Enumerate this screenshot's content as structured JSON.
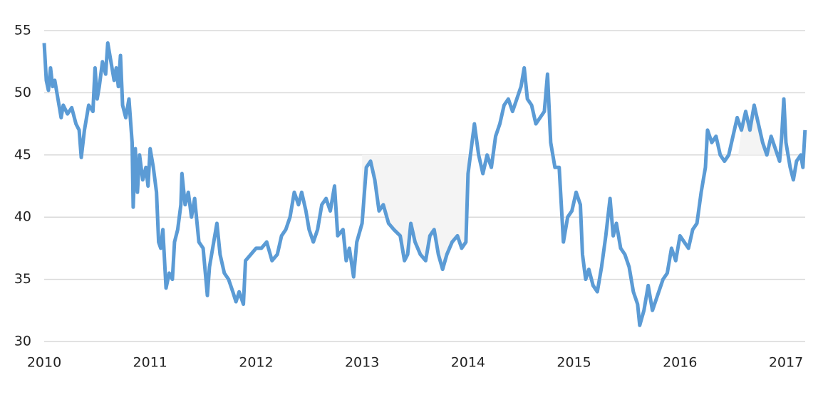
{
  "chart_data": {
    "type": "line",
    "x": [
      2010.0,
      2010.02,
      2010.04,
      2010.06,
      2010.08,
      2010.1,
      2010.13,
      2010.16,
      2010.18,
      2010.22,
      2010.26,
      2010.3,
      2010.33,
      2010.35,
      2010.38,
      2010.42,
      2010.46,
      2010.48,
      2010.5,
      2010.52,
      2010.55,
      2010.58,
      2010.6,
      2010.63,
      2010.66,
      2010.68,
      2010.7,
      2010.72,
      2010.74,
      2010.77,
      2010.8,
      2010.83,
      2010.84,
      2010.86,
      2010.88,
      2010.9,
      2010.93,
      2010.96,
      2010.98,
      2011.0,
      2011.03,
      2011.06,
      2011.08,
      2011.1,
      2011.12,
      2011.15,
      2011.18,
      2011.21,
      2011.23,
      2011.26,
      2011.29,
      2011.3,
      2011.33,
      2011.36,
      2011.39,
      2011.42,
      2011.46,
      2011.5,
      2011.54,
      2011.56,
      2011.6,
      2011.63,
      2011.66,
      2011.7,
      2011.74,
      2011.78,
      2011.81,
      2011.84,
      2011.88,
      2011.9,
      2011.95,
      2012.0,
      2012.05,
      2012.1,
      2012.15,
      2012.2,
      2012.24,
      2012.28,
      2012.32,
      2012.36,
      2012.4,
      2012.43,
      2012.47,
      2012.5,
      2012.54,
      2012.58,
      2012.62,
      2012.66,
      2012.7,
      2012.74,
      2012.77,
      2012.82,
      2012.85,
      2012.88,
      2012.92,
      2012.95,
      2013.0,
      2013.04,
      2013.08,
      2013.12,
      2013.16,
      2013.2,
      2013.25,
      2013.3,
      2013.36,
      2013.4,
      2013.43,
      2013.46,
      2013.5,
      2013.55,
      2013.6,
      2013.64,
      2013.68,
      2013.72,
      2013.76,
      2013.8,
      2013.85,
      2013.9,
      2013.94,
      2013.98,
      2014.0,
      2014.03,
      2014.06,
      2014.1,
      2014.14,
      2014.18,
      2014.22,
      2014.26,
      2014.3,
      2014.34,
      2014.38,
      2014.42,
      2014.46,
      2014.5,
      2014.53,
      2014.56,
      2014.6,
      2014.64,
      2014.68,
      2014.72,
      2014.75,
      2014.78,
      2014.82,
      2014.86,
      2014.9,
      2014.94,
      2014.98,
      2015.02,
      2015.06,
      2015.08,
      2015.11,
      2015.14,
      2015.18,
      2015.22,
      2015.26,
      2015.3,
      2015.34,
      2015.37,
      2015.4,
      2015.44,
      2015.48,
      2015.52,
      2015.56,
      2015.6,
      2015.62,
      2015.66,
      2015.7,
      2015.74,
      2015.8,
      2015.84,
      2015.88,
      2015.92,
      2015.96,
      2016.0,
      2016.04,
      2016.08,
      2016.12,
      2016.16,
      2016.2,
      2016.24,
      2016.26,
      2016.3,
      2016.34,
      2016.38,
      2016.42,
      2016.46,
      2016.5,
      2016.54,
      2016.58,
      2016.62,
      2016.66,
      2016.7,
      2016.74,
      2016.78,
      2016.82,
      2016.86,
      2016.9,
      2016.94,
      2016.96,
      2016.98,
      2017.0,
      2017.04,
      2017.07,
      2017.1,
      2017.14,
      2017.16,
      2017.18
    ],
    "values": [
      54.0,
      51,
      50.2,
      52,
      50.5,
      51,
      49.5,
      48,
      49,
      48.3,
      48.8,
      47.5,
      47,
      44.8,
      47,
      49,
      48.5,
      52,
      49.5,
      50.5,
      52.5,
      51.5,
      54,
      52.5,
      51,
      52,
      50.5,
      53,
      49,
      48,
      49.5,
      46,
      40.8,
      45.5,
      42,
      45,
      43,
      44,
      42.5,
      45.5,
      44,
      42,
      38,
      37.5,
      39,
      34.3,
      35.5,
      35,
      38,
      39,
      41,
      43.5,
      41,
      42,
      40,
      41.5,
      38,
      37.5,
      33.7,
      36,
      38,
      39.5,
      37,
      35.5,
      35,
      34,
      33.2,
      34,
      33,
      36.5,
      37,
      37.5,
      37.5,
      38,
      36.5,
      37,
      38.5,
      39,
      40,
      42,
      41,
      42,
      40.5,
      39,
      38,
      39,
      41,
      41.5,
      40.5,
      42.5,
      38.5,
      39,
      36.5,
      37.5,
      35.2,
      38,
      39.5,
      44,
      44.5,
      43,
      40.5,
      41,
      39.5,
      39,
      38.5,
      36.5,
      37,
      39.5,
      38,
      37,
      36.5,
      38.5,
      39,
      37,
      35.8,
      37,
      38,
      38.5,
      37.5,
      38,
      43.5,
      45.5,
      47.5,
      45,
      43.5,
      45,
      44,
      46.5,
      47.5,
      49,
      49.5,
      48.5,
      49.5,
      50.5,
      52,
      49.5,
      49,
      47.5,
      48,
      48.5,
      51.5,
      46,
      44,
      44,
      38,
      40,
      40.5,
      42,
      41,
      37,
      35,
      35.8,
      34.5,
      34,
      36,
      38.5,
      41.5,
      38.5,
      39.5,
      37.5,
      37,
      36,
      34,
      33,
      31.3,
      32.5,
      34.5,
      32.5,
      34,
      35,
      35.5,
      37.5,
      36.5,
      38.5,
      38,
      37.5,
      39,
      39.5,
      42,
      44,
      47,
      46,
      46.5,
      45,
      44.5,
      45,
      46.5,
      48,
      47,
      48.5,
      47,
      49,
      47.5,
      46,
      45,
      46.5,
      45.5,
      44.5,
      46.5,
      49.5,
      46,
      44,
      43,
      44.5,
      45,
      44,
      47
    ],
    "color": "#5b9bd5",
    "shade": {
      "y": 45,
      "ranges": [
        [
          2013.0,
          2014.0
        ],
        [
          2016.55,
          2016.98
        ]
      ],
      "color": "#f4f4f4"
    },
    "xlim": [
      2010,
      2017.18
    ],
    "xticks": [
      2010,
      2011,
      2012,
      2013,
      2014,
      2015,
      2016,
      2017
    ],
    "ylim": [
      30,
      55
    ],
    "yticks": [
      30,
      35,
      40,
      45,
      50,
      55
    ],
    "grid": true
  }
}
